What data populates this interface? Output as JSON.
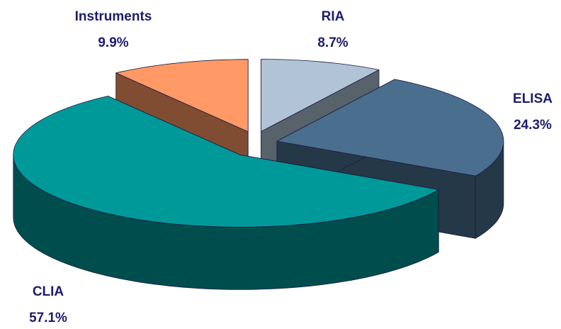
{
  "chart_data": {
    "type": "pie3d",
    "categories": [
      "RIA",
      "ELISA",
      "CLIA",
      "Instruments"
    ],
    "values": [
      8.7,
      24.3,
      57.1,
      9.9
    ],
    "value_labels": [
      "8.7%",
      "24.3%",
      "57.1%",
      "9.9%"
    ],
    "colors": [
      "#b0c4d6",
      "#4a6f8e",
      "#009999",
      "#ff9966"
    ]
  }
}
